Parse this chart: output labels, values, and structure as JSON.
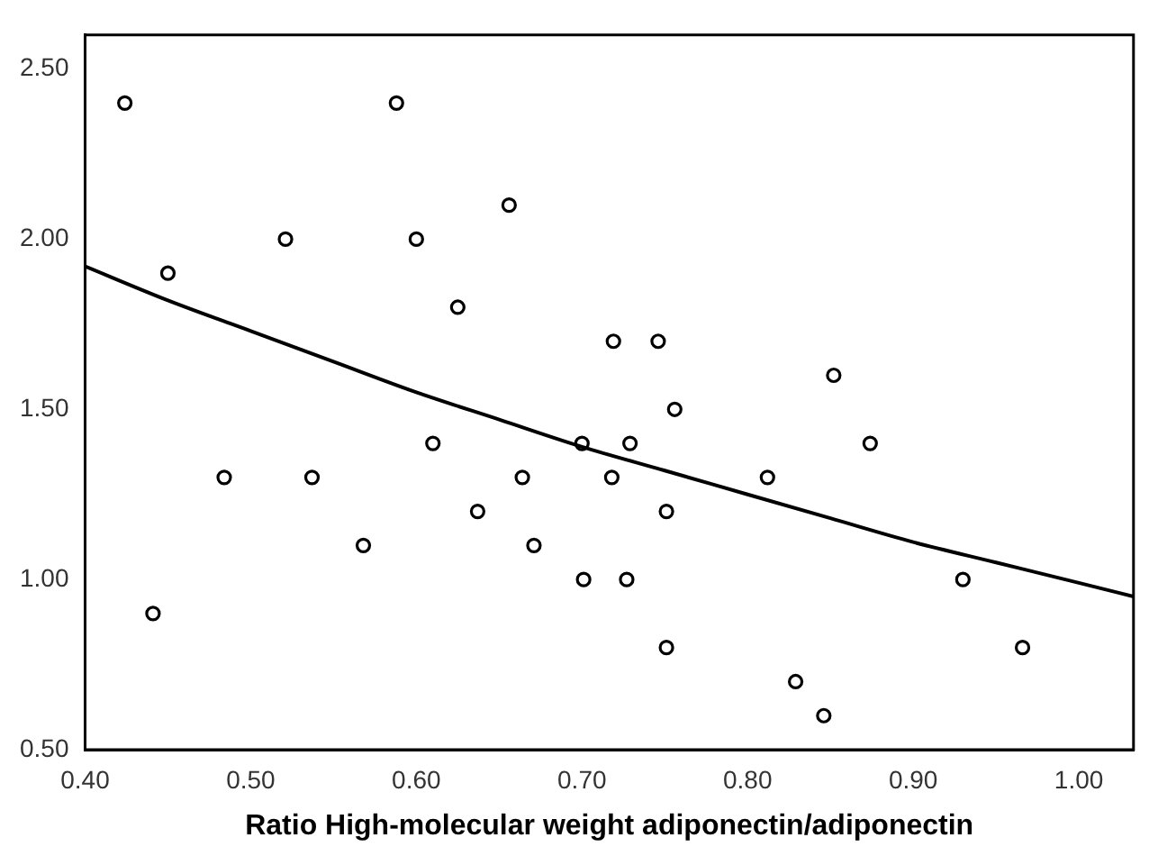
{
  "chart_data": {
    "type": "scatter",
    "xlabel": "Ratio High-molecular weight adiponectin/adiponectin",
    "xlim": [
      0.4,
      1.033
    ],
    "ylim": [
      0.5,
      2.6
    ],
    "xticks": [
      {
        "value": 0.4,
        "label": "0.40"
      },
      {
        "value": 0.5,
        "label": "0.50"
      },
      {
        "value": 0.6,
        "label": "0.60"
      },
      {
        "value": 0.7,
        "label": "0.70"
      },
      {
        "value": 0.8,
        "label": "0.80"
      },
      {
        "value": 0.9,
        "label": "0.90"
      },
      {
        "value": 1.0,
        "label": "1.00"
      }
    ],
    "yticks": [
      {
        "value": 0.5,
        "label": "0.50"
      },
      {
        "value": 1.0,
        "label": "1.00"
      },
      {
        "value": 1.5,
        "label": "1.50"
      },
      {
        "value": 2.0,
        "label": "2.00"
      },
      {
        "value": 2.5,
        "label": "2.50"
      }
    ],
    "grid": false,
    "marker": "circle",
    "series": [
      {
        "color": "#000000",
        "x": [
          0.424,
          0.45,
          0.441,
          0.484,
          0.521,
          0.537,
          0.568,
          0.588,
          0.6,
          0.61,
          0.625,
          0.637,
          0.656,
          0.664,
          0.671,
          0.7,
          0.701,
          0.718,
          0.719,
          0.727,
          0.729,
          0.746,
          0.751,
          0.751,
          0.756,
          0.812,
          0.829,
          0.846,
          0.852,
          0.874,
          0.93,
          0.966
        ],
        "values": [
          2.4,
          1.9,
          0.9,
          1.3,
          2.0,
          1.3,
          1.1,
          2.4,
          2.0,
          1.4,
          1.8,
          1.2,
          2.1,
          1.3,
          1.1,
          1.4,
          1.0,
          1.3,
          1.7,
          1.0,
          1.4,
          1.7,
          1.2,
          0.8,
          1.5,
          1.3,
          0.7,
          0.6,
          1.6,
          1.4,
          1.0,
          0.8
        ]
      },
      {
        "type": "line",
        "marker": "none",
        "color": "#000000",
        "x": [
          0.4,
          0.45,
          0.5,
          0.55,
          0.6,
          0.65,
          0.7,
          0.75,
          0.8,
          0.85,
          0.9,
          0.95,
          1.0,
          1.033
        ],
        "values": [
          1.92,
          1.82,
          1.73,
          1.64,
          1.55,
          1.47,
          1.39,
          1.32,
          1.25,
          1.18,
          1.11,
          1.05,
          0.99,
          0.95
        ]
      }
    ]
  }
}
